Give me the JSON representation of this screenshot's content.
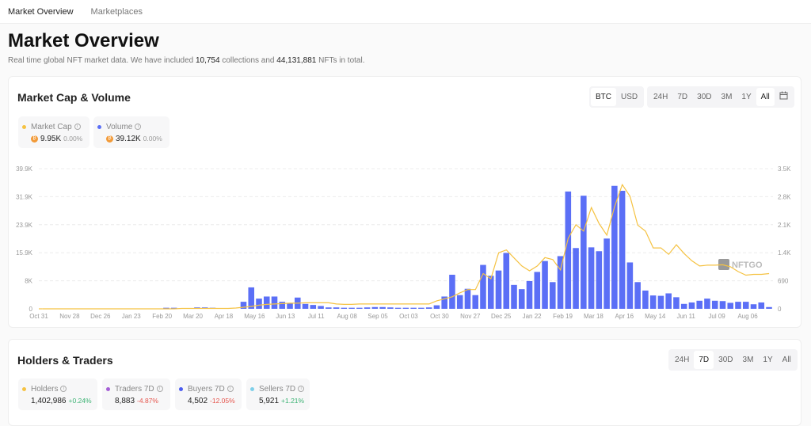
{
  "nav": {
    "tabs": [
      {
        "label": "Market Overview"
      },
      {
        "label": "Marketplaces"
      }
    ]
  },
  "page": {
    "title": "Market Overview",
    "subtitle_pre": "Real time global NFT market data. We have included ",
    "collections": "10,754",
    "subtitle_mid": " collections and ",
    "nfts": "44,131,881",
    "subtitle_post": " NFTs in total."
  },
  "market": {
    "title": "Market Cap & Volume",
    "currency": [
      "BTC",
      "USD"
    ],
    "currency_selected": "BTC",
    "ranges": [
      "24H",
      "7D",
      "30D",
      "3M",
      "1Y",
      "All"
    ],
    "range_selected": "All",
    "calendar_icon": "calendar-icon",
    "stats": [
      {
        "label": "Market Cap",
        "value": "9.95K",
        "change": "0.00%",
        "color": "#f5c242"
      },
      {
        "label": "Volume",
        "value": "39.12K",
        "change": "0.00%",
        "color": "#5b6ff6"
      }
    ],
    "watermark": "NFTGO"
  },
  "chart_data": {
    "type": "bar+line",
    "x_tick_labels": [
      "Oct 31",
      "Nov 28",
      "Dec 26",
      "Jan 23",
      "Feb 20",
      "Mar 20",
      "Apr 18",
      "May 16",
      "Jun 13",
      "Jul 11",
      "Aug 08",
      "Sep 05",
      "Oct 03",
      "Oct 30",
      "Nov 27",
      "Dec 25",
      "Jan 22",
      "Feb 19",
      "Mar 18",
      "Apr 16",
      "May 14",
      "Jun 11",
      "Jul 09",
      "Aug 06"
    ],
    "y_left_ticks": [
      "0",
      "8K",
      "15.9K",
      "23.9K",
      "31.9K",
      "39.9K"
    ],
    "y_left_range": [
      0,
      39.9
    ],
    "y_right_ticks": [
      "0",
      "690",
      "1.4K",
      "2.1K",
      "2.8K",
      "3.5K"
    ],
    "y_right_range": [
      0,
      3.5
    ],
    "grid": true,
    "series": [
      {
        "name": "Volume",
        "type": "bar",
        "axis": "left",
        "unit": "K",
        "color": "#5b6ff6",
        "values": [
          0,
          0,
          0,
          0,
          0,
          0,
          0,
          0,
          0,
          0,
          0,
          0,
          0,
          0,
          0,
          0,
          0.3,
          0.3,
          0,
          0,
          0.4,
          0.4,
          0.3,
          0,
          0,
          0,
          2.0,
          6.1,
          2.9,
          3.5,
          3.5,
          2.0,
          1.6,
          3.2,
          1.4,
          1.1,
          0.8,
          0.4,
          0.4,
          0.3,
          0.3,
          0.3,
          0.4,
          0.5,
          0.5,
          0.4,
          0.3,
          0.3,
          0.3,
          0.3,
          0.4,
          1.0,
          3.5,
          9.7,
          3.9,
          5.7,
          3.9,
          12.5,
          9.4,
          10.9,
          15.9,
          6.8,
          5.6,
          7.9,
          10.5,
          13.6,
          7.6,
          15.0,
          33.4,
          17.3,
          32.2,
          17.5,
          16.4,
          20.0,
          35.0,
          33.6,
          13.2,
          7.6,
          5.2,
          3.8,
          3.7,
          4.4,
          3.3,
          1.4,
          1.8,
          2.3,
          2.9,
          2.3,
          2.2,
          1.7,
          2.0,
          2.0,
          1.3,
          1.8,
          0.5
        ]
      },
      {
        "name": "Market Cap",
        "type": "line",
        "axis": "right",
        "unit": "K",
        "color": "#f5c242",
        "values": [
          0,
          0,
          0,
          0,
          0,
          0,
          0,
          0,
          0,
          0,
          0,
          0,
          0,
          0,
          0,
          0,
          0,
          0,
          0.01,
          0.01,
          0.01,
          0.01,
          0.01,
          0.01,
          0.01,
          0.02,
          0.04,
          0.06,
          0.09,
          0.11,
          0.12,
          0.13,
          0.14,
          0.14,
          0.15,
          0.15,
          0.15,
          0.15,
          0.12,
          0.11,
          0.11,
          0.12,
          0.12,
          0.12,
          0.12,
          0.12,
          0.12,
          0.12,
          0.12,
          0.12,
          0.12,
          0.2,
          0.25,
          0.3,
          0.4,
          0.48,
          0.48,
          0.88,
          0.75,
          1.4,
          1.47,
          1.27,
          1.07,
          0.95,
          1.07,
          1.28,
          1.23,
          0.97,
          1.76,
          2.1,
          1.94,
          2.53,
          2.13,
          1.84,
          2.55,
          3.1,
          2.81,
          2.09,
          1.94,
          1.52,
          1.52,
          1.36,
          1.6,
          1.38,
          1.2,
          1.07,
          1.09,
          1.09,
          1.1,
          1.05,
          0.93,
          0.84,
          0.86,
          0.86,
          0.88
        ]
      }
    ]
  },
  "holders": {
    "title": "Holders & Traders",
    "ranges": [
      "24H",
      "7D",
      "30D",
      "3M",
      "1Y",
      "All"
    ],
    "range_selected": "7D",
    "stats": [
      {
        "label": "Holders",
        "value": "1,402,986",
        "change": "+0.24%",
        "color": "#f5c242",
        "trend": "up"
      },
      {
        "label": "Traders 7D",
        "value": "8,883",
        "change": "-4.87%",
        "color": "#a55fd6",
        "trend": "down"
      },
      {
        "label": "Buyers 7D",
        "value": "4,502",
        "change": "-12.05%",
        "color": "#4b5cf0",
        "trend": "down"
      },
      {
        "label": "Sellers 7D",
        "value": "5,921",
        "change": "+1.21%",
        "color": "#7ecfe9",
        "trend": "up"
      }
    ]
  }
}
